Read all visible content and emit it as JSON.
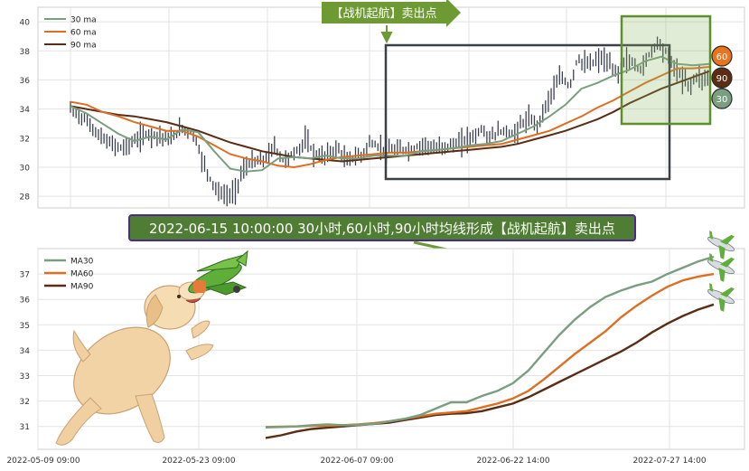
{
  "chart_data": [
    {
      "type": "candlestick+line",
      "panel": "top",
      "ylim": [
        27.2,
        41.0
      ],
      "yticks": [
        28,
        30,
        32,
        34,
        36,
        38,
        40
      ],
      "grid": true,
      "legend_position": "top-left",
      "series": [
        {
          "name": "30 ma",
          "color": "#7a9e80"
        },
        {
          "name": "60 ma",
          "color": "#dd6f22"
        },
        {
          "name": "90 ma",
          "color": "#5a2d14"
        }
      ],
      "annotation_box_label": "【战机起航】卖出点",
      "badges": [
        "60",
        "90",
        "30"
      ],
      "badge_colors": [
        "#e8741e",
        "#5a2d14",
        "#7a9e80"
      ],
      "ma30_path": [
        [
          0,
          34.2
        ],
        [
          4,
          33.7
        ],
        [
          8,
          33.0
        ],
        [
          12,
          32.3
        ],
        [
          16,
          31.8
        ],
        [
          20,
          32.1
        ],
        [
          24,
          31.9
        ],
        [
          28,
          32.6
        ],
        [
          32,
          32.4
        ],
        [
          36,
          31.1
        ],
        [
          40,
          29.9
        ],
        [
          44,
          29.7
        ],
        [
          48,
          29.8
        ],
        [
          52,
          30.6
        ],
        [
          56,
          30.7
        ],
        [
          60,
          30.6
        ],
        [
          64,
          30.8
        ],
        [
          68,
          30.6
        ],
        [
          72,
          30.6
        ],
        [
          76,
          30.8
        ],
        [
          80,
          30.8
        ],
        [
          84,
          30.8
        ],
        [
          88,
          31.1
        ],
        [
          92,
          31.2
        ],
        [
          96,
          31.3
        ],
        [
          100,
          31.5
        ],
        [
          104,
          31.6
        ],
        [
          108,
          31.8
        ],
        [
          112,
          32.3
        ],
        [
          116,
          32.8
        ],
        [
          120,
          33.5
        ],
        [
          124,
          34.3
        ],
        [
          128,
          35.4
        ],
        [
          132,
          35.8
        ],
        [
          136,
          36.3
        ],
        [
          140,
          36.7
        ],
        [
          144,
          37.3
        ],
        [
          148,
          37.6
        ],
        [
          152,
          37.1
        ],
        [
          156,
          37.0
        ],
        [
          160,
          37.1
        ]
      ],
      "ma60_path": [
        [
          0,
          34.5
        ],
        [
          4,
          34.3
        ],
        [
          8,
          33.8
        ],
        [
          12,
          33.5
        ],
        [
          16,
          33.1
        ],
        [
          20,
          32.8
        ],
        [
          24,
          32.5
        ],
        [
          28,
          32.5
        ],
        [
          32,
          32.1
        ],
        [
          36,
          31.5
        ],
        [
          40,
          30.9
        ],
        [
          44,
          30.6
        ],
        [
          48,
          30.4
        ],
        [
          52,
          30.1
        ],
        [
          56,
          30.0
        ],
        [
          60,
          30.2
        ],
        [
          64,
          30.5
        ],
        [
          68,
          30.7
        ],
        [
          72,
          30.8
        ],
        [
          76,
          30.9
        ],
        [
          80,
          31.0
        ],
        [
          84,
          31.0
        ],
        [
          88,
          31.1
        ],
        [
          92,
          31.2
        ],
        [
          96,
          31.3
        ],
        [
          100,
          31.4
        ],
        [
          104,
          31.5
        ],
        [
          108,
          31.6
        ],
        [
          112,
          31.9
        ],
        [
          116,
          32.2
        ],
        [
          120,
          32.5
        ],
        [
          124,
          33.0
        ],
        [
          128,
          33.5
        ],
        [
          132,
          34.1
        ],
        [
          136,
          34.6
        ],
        [
          140,
          35.2
        ],
        [
          144,
          35.8
        ],
        [
          148,
          36.3
        ],
        [
          152,
          36.8
        ],
        [
          156,
          36.8
        ],
        [
          160,
          36.9
        ]
      ],
      "ma90_path": [
        [
          0,
          34.2
        ],
        [
          4,
          34.0
        ],
        [
          8,
          33.8
        ],
        [
          12,
          33.6
        ],
        [
          16,
          33.5
        ],
        [
          20,
          33.3
        ],
        [
          24,
          33.1
        ],
        [
          28,
          32.8
        ],
        [
          32,
          32.5
        ],
        [
          36,
          32.1
        ],
        [
          40,
          31.7
        ],
        [
          44,
          31.4
        ],
        [
          48,
          31.1
        ],
        [
          52,
          30.9
        ],
        [
          56,
          30.7
        ],
        [
          60,
          30.6
        ],
        [
          64,
          30.5
        ],
        [
          68,
          30.4
        ],
        [
          72,
          30.5
        ],
        [
          76,
          30.6
        ],
        [
          80,
          30.7
        ],
        [
          84,
          30.8
        ],
        [
          88,
          30.9
        ],
        [
          92,
          31.0
        ],
        [
          96,
          31.1
        ],
        [
          100,
          31.2
        ],
        [
          104,
          31.3
        ],
        [
          108,
          31.4
        ],
        [
          112,
          31.6
        ],
        [
          116,
          31.9
        ],
        [
          120,
          32.2
        ],
        [
          124,
          32.5
        ],
        [
          128,
          32.9
        ],
        [
          132,
          33.3
        ],
        [
          136,
          33.8
        ],
        [
          140,
          34.4
        ],
        [
          144,
          34.9
        ],
        [
          148,
          35.4
        ],
        [
          152,
          35.8
        ],
        [
          156,
          36.2
        ],
        [
          160,
          36.6
        ]
      ],
      "price_path": [
        [
          0,
          34.0
        ],
        [
          4,
          33.2
        ],
        [
          7,
          32.2
        ],
        [
          10,
          31.6
        ],
        [
          13,
          31.3
        ],
        [
          16,
          31.8
        ],
        [
          19,
          32.3
        ],
        [
          22,
          32.2
        ],
        [
          25,
          31.9
        ],
        [
          28,
          32.7
        ],
        [
          31,
          32.2
        ],
        [
          33,
          30.5
        ],
        [
          35,
          29.2
        ],
        [
          37,
          28.3
        ],
        [
          39,
          28.0
        ],
        [
          41,
          28.2
        ],
        [
          43,
          29.7
        ],
        [
          45,
          30.3
        ],
        [
          47,
          30.4
        ],
        [
          49,
          30.6
        ],
        [
          51,
          31.5
        ],
        [
          53,
          30.5
        ],
        [
          55,
          30.7
        ],
        [
          57,
          31.2
        ],
        [
          59,
          31.9
        ],
        [
          61,
          30.9
        ],
        [
          63,
          30.7
        ],
        [
          65,
          31.0
        ],
        [
          67,
          31.3
        ],
        [
          69,
          30.4
        ],
        [
          71,
          30.7
        ],
        [
          73,
          30.8
        ],
        [
          75,
          31.7
        ],
        [
          77,
          31.4
        ],
        [
          79,
          31.2
        ],
        [
          81,
          31.1
        ],
        [
          83,
          31.2
        ],
        [
          85,
          31.2
        ],
        [
          87,
          31.4
        ],
        [
          89,
          31.6
        ],
        [
          91,
          31.2
        ],
        [
          93,
          31.4
        ],
        [
          95,
          31.5
        ],
        [
          97,
          31.6
        ],
        [
          99,
          31.9
        ],
        [
          101,
          32.1
        ],
        [
          103,
          32.6
        ],
        [
          105,
          32.0
        ],
        [
          107,
          32.4
        ],
        [
          109,
          32.5
        ],
        [
          111,
          32.2
        ],
        [
          113,
          33.0
        ],
        [
          115,
          33.3
        ],
        [
          117,
          32.9
        ],
        [
          119,
          34.2
        ],
        [
          121,
          35.4
        ],
        [
          123,
          36.2
        ],
        [
          125,
          35.5
        ],
        [
          127,
          37.5
        ],
        [
          129,
          37.0
        ],
        [
          131,
          37.2
        ],
        [
          133,
          37.5
        ],
        [
          135,
          37.0
        ],
        [
          137,
          36.4
        ],
        [
          139,
          37.4
        ],
        [
          141,
          37.1
        ],
        [
          143,
          36.7
        ],
        [
          145,
          37.8
        ],
        [
          147,
          38.6
        ],
        [
          149,
          38.0
        ],
        [
          151,
          37.0
        ],
        [
          153,
          36.2
        ],
        [
          155,
          35.6
        ],
        [
          157,
          36.3
        ],
        [
          159,
          36.0
        ],
        [
          160,
          36.6
        ]
      ]
    },
    {
      "type": "line",
      "panel": "bottom",
      "ylim": [
        30.1,
        38.0
      ],
      "yticks": [
        31,
        32,
        33,
        34,
        35,
        36,
        37
      ],
      "xticks": [
        "2022-05-09 09:00",
        "2022-05-23 09:00",
        "2022-06-07 09:00",
        "2022-06-22 14:00",
        "2022-07-27 14:00"
      ],
      "grid": true,
      "legend_position": "top-left",
      "series": [
        {
          "name": "MA30",
          "color": "#7a9e80",
          "values": [
            30.96,
            30.98,
            31.0,
            31.05,
            31.08,
            31.05,
            31.06,
            31.1,
            31.2,
            31.3,
            31.45,
            31.7,
            31.95,
            31.95,
            32.2,
            32.4,
            32.7,
            33.2,
            33.9,
            34.6,
            35.2,
            35.7,
            36.1,
            36.35,
            36.55,
            36.7,
            37.0,
            37.25,
            37.5,
            37.68
          ]
        },
        {
          "name": "MA60",
          "color": "#dd6f22",
          "values": [
            30.98,
            30.99,
            31.0,
            31.02,
            31.03,
            31.05,
            31.08,
            31.13,
            31.2,
            31.3,
            31.4,
            31.5,
            31.55,
            31.6,
            31.75,
            31.9,
            32.1,
            32.4,
            32.85,
            33.35,
            33.85,
            34.3,
            34.75,
            35.3,
            35.75,
            36.15,
            36.5,
            36.75,
            36.9,
            37.0
          ]
        },
        {
          "name": "MA90",
          "color": "#5a2d14",
          "values": [
            30.55,
            30.65,
            30.8,
            30.9,
            30.95,
            31.0,
            31.05,
            31.1,
            31.15,
            31.25,
            31.35,
            31.45,
            31.5,
            31.52,
            31.6,
            31.75,
            31.9,
            32.15,
            32.45,
            32.75,
            33.05,
            33.35,
            33.65,
            33.95,
            34.3,
            34.7,
            35.05,
            35.35,
            35.6,
            35.8
          ]
        }
      ]
    }
  ],
  "banner": {
    "text": "2022-06-15 10:00:00 30小时,60小时,90小时均线形成【战机起航】卖出点",
    "bg": "#4f7d33",
    "border": "#4b2a8c",
    "text_color": "#ffffff"
  },
  "top_label": {
    "text": "【战机起航】卖出点",
    "bg": "#6e9a34"
  },
  "decor": {
    "dog": "dog-illustration",
    "plane": "airplane-icon"
  }
}
